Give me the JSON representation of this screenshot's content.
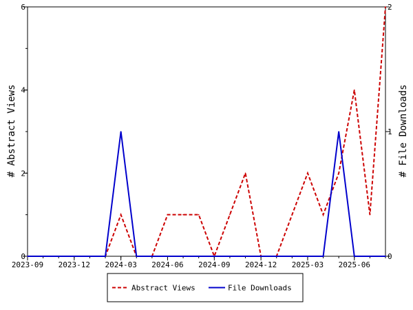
{
  "chart_data": {
    "type": "line",
    "title": "",
    "xlabel": "",
    "ylabel_left": "# Abstract Views",
    "ylabel_right": "# File Downloads",
    "ylim_left": [
      0,
      6
    ],
    "ylim_right": [
      0,
      2
    ],
    "yticks_left": [
      "0",
      "2",
      "4",
      "6"
    ],
    "yticks_right": [
      "0",
      "1",
      "2"
    ],
    "xlim": [
      "2023-09",
      "2025-08"
    ],
    "x_tick_labels": [
      "2023-09",
      "2023-12",
      "2024-03",
      "2024-06",
      "2024-09",
      "2024-12",
      "2025-03",
      "2025-06"
    ],
    "x": [
      "2023-09",
      "2023-10",
      "2023-11",
      "2023-12",
      "2024-01",
      "2024-02",
      "2024-03",
      "2024-04",
      "2024-05",
      "2024-06",
      "2024-07",
      "2024-08",
      "2024-09",
      "2024-10",
      "2024-11",
      "2024-12",
      "2025-01",
      "2025-02",
      "2025-03",
      "2025-04",
      "2025-05",
      "2025-06",
      "2025-07",
      "2025-08"
    ],
    "series": [
      {
        "name": "Abstract Views",
        "axis": "left",
        "style": "dashed",
        "color": "#cc0000",
        "values": [
          0,
          0,
          0,
          0,
          0,
          0,
          1,
          0,
          0,
          1,
          1,
          1,
          0,
          1,
          2,
          0,
          0,
          1,
          2,
          1,
          2,
          4,
          1,
          6
        ]
      },
      {
        "name": "File Downloads",
        "axis": "right",
        "style": "solid",
        "color": "#0000cc",
        "values": [
          0,
          0,
          0,
          0,
          0,
          0,
          1,
          0,
          0,
          0,
          0,
          0,
          0,
          0,
          0,
          0,
          0,
          0,
          0,
          0,
          1,
          0,
          0,
          0
        ]
      }
    ],
    "grid": false,
    "legend_position": "bottom"
  }
}
